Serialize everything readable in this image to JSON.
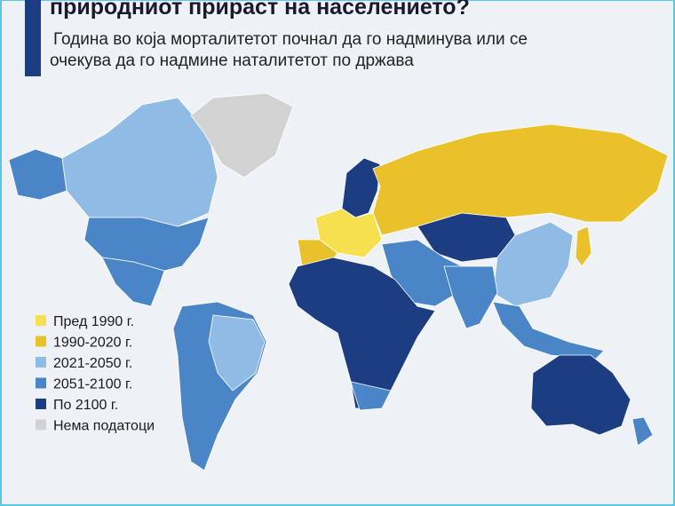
{
  "header": {
    "title": "природниот прираст на населението?",
    "subtitle_lines": [
      "Година во која морталитетот почнал да го надминува или се",
      "очекува да го надмине наталитетот по држава"
    ]
  },
  "legend": [
    {
      "label": "Пред 1990 г.",
      "color": "#f6e04f"
    },
    {
      "label": "1990-2020 г.",
      "color": "#e9c12b"
    },
    {
      "label": "2021-2050 г.",
      "color": "#8fbbe4"
    },
    {
      "label": "2051-2100 г.",
      "color": "#4a85c7"
    },
    {
      "label": "По 2100 г.",
      "color": "#1d3d83"
    },
    {
      "label": "Нема податоци",
      "color": "#d2d2d2"
    }
  ]
}
